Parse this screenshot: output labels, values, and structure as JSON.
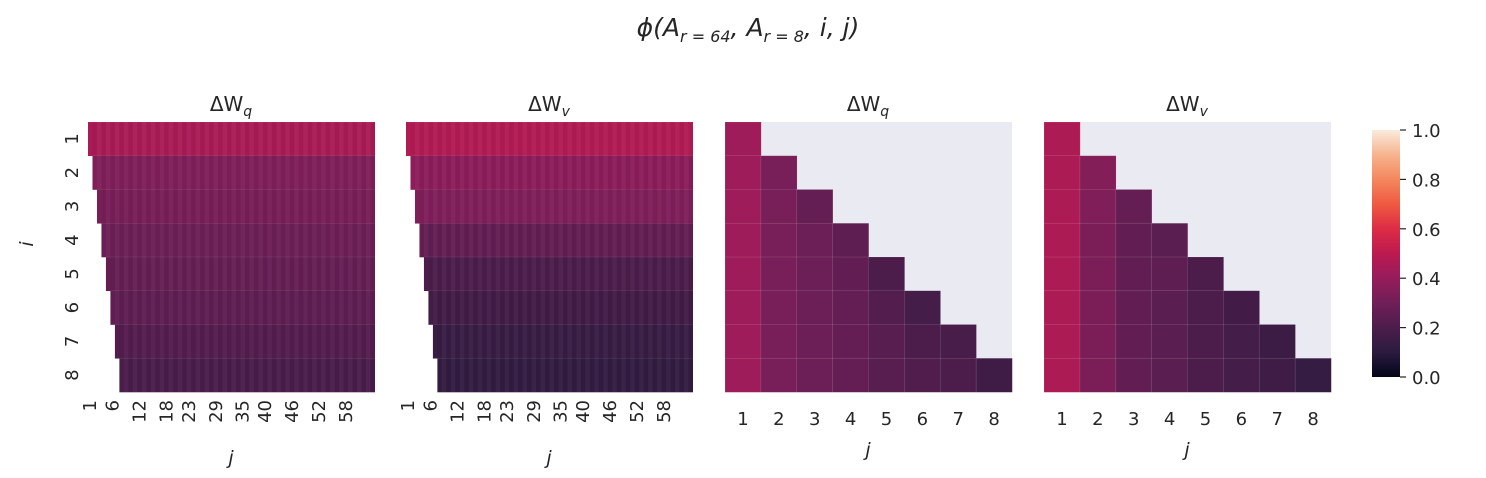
{
  "figure": {
    "title": "ϕ(A_{r=64}, A_{r=8}, i, j)",
    "title_base": "ϕ(A",
    "title_sub1": "r = 64",
    "title_mid": ", A",
    "title_sub2": "r = 8",
    "title_end": ", i, j)"
  },
  "colors": {
    "background": "#eaeaf2",
    "grid": "#ffffff",
    "colormap": [
      "#03051a",
      "#2b1b3f",
      "#4c1d4b",
      "#701f57",
      "#961c5b",
      "#bc1a50",
      "#dd2c45",
      "#ef5a41",
      "#f4875e",
      "#f6b48e",
      "#faebdd"
    ]
  },
  "chart_data": [
    {
      "type": "heatmap",
      "title_base": "ΔW",
      "title_sub": "q",
      "xlabel": "j",
      "ylabel": "i",
      "x_count": 64,
      "x_ticks": [
        "1",
        "6",
        "12",
        "18",
        "23",
        "29",
        "35",
        "40",
        "46",
        "52",
        "58"
      ],
      "x_tick_index": [
        1,
        6,
        12,
        18,
        23,
        29,
        35,
        40,
        46,
        52,
        58
      ],
      "y_ticks": [
        "1",
        "2",
        "3",
        "4",
        "5",
        "6",
        "7",
        "8"
      ],
      "mask": "lower",
      "row_values": [
        0.45,
        0.34,
        0.32,
        0.29,
        0.27,
        0.25,
        0.22,
        0.19
      ]
    },
    {
      "type": "heatmap",
      "title_base": "ΔW",
      "title_sub": "v",
      "xlabel": "j",
      "x_count": 64,
      "x_ticks": [
        "1",
        "6",
        "12",
        "18",
        "23",
        "29",
        "35",
        "40",
        "46",
        "52",
        "58"
      ],
      "x_tick_index": [
        1,
        6,
        12,
        18,
        23,
        29,
        35,
        40,
        46,
        52,
        58
      ],
      "mask": "lower",
      "row_values": [
        0.47,
        0.37,
        0.34,
        0.26,
        0.2,
        0.17,
        0.14,
        0.12
      ]
    },
    {
      "type": "heatmap",
      "title_base": "ΔW",
      "title_sub": "q",
      "xlabel": "j",
      "x_count": 8,
      "x_ticks": [
        "1",
        "2",
        "3",
        "4",
        "5",
        "6",
        "7",
        "8"
      ],
      "x_tick_index": [
        1,
        2,
        3,
        4,
        5,
        6,
        7,
        8
      ],
      "mask": "upper",
      "cells": [
        [
          0.42,
          null,
          null,
          null,
          null,
          null,
          null,
          null
        ],
        [
          0.42,
          0.32,
          null,
          null,
          null,
          null,
          null,
          null
        ],
        [
          0.42,
          0.32,
          0.27,
          null,
          null,
          null,
          null,
          null
        ],
        [
          0.42,
          0.32,
          0.29,
          0.25,
          null,
          null,
          null,
          null
        ],
        [
          0.42,
          0.32,
          0.29,
          0.26,
          0.2,
          null,
          null,
          null
        ],
        [
          0.42,
          0.32,
          0.29,
          0.27,
          0.22,
          0.18,
          null,
          null
        ],
        [
          0.42,
          0.32,
          0.29,
          0.27,
          0.23,
          0.2,
          0.19,
          null
        ],
        [
          0.42,
          0.32,
          0.29,
          0.27,
          0.23,
          0.21,
          0.2,
          0.16
        ]
      ]
    },
    {
      "type": "heatmap",
      "title_base": "ΔW",
      "title_sub": "v",
      "xlabel": "j",
      "x_count": 8,
      "x_ticks": [
        "1",
        "2",
        "3",
        "4",
        "5",
        "6",
        "7",
        "8"
      ],
      "x_tick_index": [
        1,
        2,
        3,
        4,
        5,
        6,
        7,
        8
      ],
      "mask": "upper",
      "cells": [
        [
          0.46,
          null,
          null,
          null,
          null,
          null,
          null,
          null
        ],
        [
          0.46,
          0.35,
          null,
          null,
          null,
          null,
          null,
          null
        ],
        [
          0.46,
          0.34,
          0.27,
          null,
          null,
          null,
          null,
          null
        ],
        [
          0.46,
          0.33,
          0.26,
          0.24,
          null,
          null,
          null,
          null
        ],
        [
          0.46,
          0.33,
          0.26,
          0.25,
          0.2,
          null,
          null,
          null
        ],
        [
          0.46,
          0.33,
          0.26,
          0.24,
          0.2,
          0.17,
          null,
          null
        ],
        [
          0.46,
          0.33,
          0.26,
          0.24,
          0.2,
          0.18,
          0.15,
          null
        ],
        [
          0.46,
          0.33,
          0.26,
          0.24,
          0.2,
          0.18,
          0.16,
          0.13
        ]
      ]
    }
  ],
  "colorbar": {
    "min": 0,
    "max": 1,
    "ticks": [
      "0.0",
      "0.2",
      "0.4",
      "0.6",
      "0.8",
      "1.0"
    ],
    "tick_values": [
      0,
      0.2,
      0.4,
      0.6,
      0.8,
      1.0
    ]
  }
}
